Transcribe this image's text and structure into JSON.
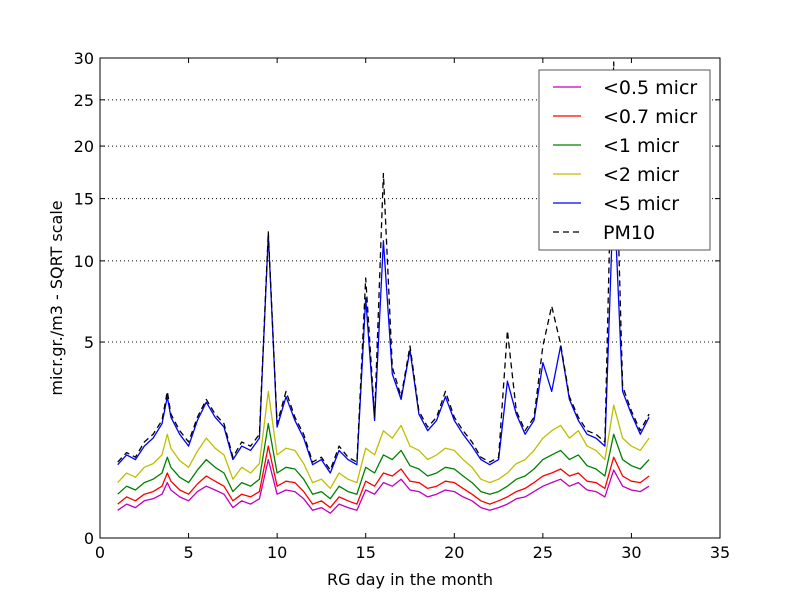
{
  "chart_data": {
    "type": "line",
    "title": "",
    "xlabel": "RG day in the month",
    "ylabel": "micr.gr./m3 - SQRT scale",
    "y_scale": "sqrt",
    "xlim": [
      0,
      35
    ],
    "ylim": [
      0,
      30
    ],
    "x_ticks": [
      0,
      5,
      10,
      15,
      20,
      25,
      30,
      35
    ],
    "x_tick_labels": [
      "0",
      "5",
      "10",
      "15",
      "20",
      "25",
      "30",
      "35"
    ],
    "y_ticks": [
      0,
      5,
      10,
      15,
      20,
      25,
      30
    ],
    "y_tick_labels": [
      "0",
      "5",
      "10",
      "15",
      "20",
      "25",
      "30"
    ],
    "grid": "horizontal dotted",
    "legend_position": "top-right",
    "x": [
      1,
      1.5,
      2,
      2.5,
      3,
      3.5,
      3.8,
      4,
      4.5,
      5,
      5.5,
      6,
      6.5,
      7,
      7.5,
      8,
      8.5,
      9,
      9.5,
      10,
      10.5,
      11,
      11.5,
      12,
      12.5,
      13,
      13.5,
      14,
      14.5,
      15,
      15.5,
      16,
      16.5,
      17,
      17.5,
      18,
      18.5,
      19,
      19.5,
      20,
      20.5,
      21,
      21.5,
      22,
      22.5,
      23,
      23.5,
      24,
      24.5,
      25,
      25.5,
      26,
      26.5,
      27,
      27.5,
      28,
      28.5,
      29,
      29.5,
      30,
      30.5,
      31
    ],
    "series": [
      {
        "name": "<0.5 micr",
        "color": "#bf00bf",
        "style": "solid",
        "values": [
          0.1,
          0.15,
          0.12,
          0.18,
          0.2,
          0.25,
          0.4,
          0.3,
          0.22,
          0.18,
          0.28,
          0.35,
          0.3,
          0.25,
          0.12,
          0.18,
          0.15,
          0.2,
          0.8,
          0.25,
          0.3,
          0.28,
          0.2,
          0.1,
          0.12,
          0.08,
          0.15,
          0.12,
          0.1,
          0.3,
          0.25,
          0.4,
          0.35,
          0.45,
          0.3,
          0.28,
          0.22,
          0.25,
          0.3,
          0.28,
          0.22,
          0.18,
          0.12,
          0.1,
          0.12,
          0.15,
          0.2,
          0.22,
          0.28,
          0.35,
          0.4,
          0.45,
          0.35,
          0.4,
          0.3,
          0.28,
          0.22,
          0.6,
          0.35,
          0.3,
          0.28,
          0.35
        ]
      },
      {
        "name": "<0.7 micr",
        "color": "#ff0000",
        "style": "solid",
        "values": [
          0.15,
          0.22,
          0.18,
          0.25,
          0.28,
          0.35,
          0.55,
          0.42,
          0.3,
          0.25,
          0.38,
          0.5,
          0.42,
          0.35,
          0.18,
          0.25,
          0.22,
          0.28,
          1.1,
          0.35,
          0.42,
          0.4,
          0.28,
          0.15,
          0.18,
          0.12,
          0.22,
          0.18,
          0.15,
          0.42,
          0.35,
          0.55,
          0.5,
          0.62,
          0.42,
          0.4,
          0.32,
          0.35,
          0.42,
          0.4,
          0.32,
          0.25,
          0.18,
          0.15,
          0.18,
          0.22,
          0.28,
          0.32,
          0.4,
          0.5,
          0.55,
          0.62,
          0.5,
          0.55,
          0.42,
          0.4,
          0.32,
          0.85,
          0.5,
          0.42,
          0.4,
          0.5
        ]
      },
      {
        "name": "<1 micr",
        "color": "#008000",
        "style": "solid",
        "values": [
          0.25,
          0.35,
          0.3,
          0.4,
          0.45,
          0.55,
          0.85,
          0.65,
          0.48,
          0.4,
          0.6,
          0.8,
          0.65,
          0.55,
          0.28,
          0.4,
          0.35,
          0.45,
          1.7,
          0.55,
          0.65,
          0.62,
          0.45,
          0.25,
          0.28,
          0.2,
          0.35,
          0.28,
          0.25,
          0.65,
          0.55,
          0.9,
          0.8,
          1.0,
          0.68,
          0.62,
          0.5,
          0.55,
          0.65,
          0.62,
          0.5,
          0.4,
          0.28,
          0.25,
          0.28,
          0.35,
          0.45,
          0.5,
          0.62,
          0.8,
          0.9,
          1.0,
          0.8,
          0.9,
          0.68,
          0.62,
          0.5,
          1.4,
          0.8,
          0.68,
          0.62,
          0.8
        ]
      },
      {
        "name": "<2 micr",
        "color": "#bfbf00",
        "style": "solid",
        "values": [
          0.4,
          0.55,
          0.48,
          0.65,
          0.72,
          0.9,
          1.4,
          1.05,
          0.78,
          0.65,
          0.98,
          1.3,
          1.05,
          0.9,
          0.45,
          0.65,
          0.55,
          0.72,
          2.8,
          0.9,
          1.05,
          1.0,
          0.72,
          0.4,
          0.45,
          0.32,
          0.55,
          0.45,
          0.4,
          1.05,
          0.9,
          1.5,
          1.3,
          1.65,
          1.1,
          1.0,
          0.8,
          0.9,
          1.05,
          1.0,
          0.8,
          0.65,
          0.45,
          0.4,
          0.45,
          0.55,
          0.72,
          0.8,
          1.0,
          1.3,
          1.5,
          1.65,
          1.3,
          1.5,
          1.1,
          1.0,
          0.8,
          2.3,
          1.3,
          1.1,
          1.0,
          1.3
        ]
      },
      {
        "name": "<5 micr",
        "color": "#0000ff",
        "style": "solid",
        "values": [
          0.7,
          0.9,
          0.8,
          1.1,
          1.3,
          1.7,
          2.6,
          1.9,
          1.4,
          1.1,
          1.8,
          2.4,
          1.9,
          1.6,
          0.8,
          1.1,
          1.0,
          1.3,
          12.0,
          1.6,
          2.6,
          1.8,
          1.3,
          0.7,
          0.8,
          0.55,
          1.0,
          0.8,
          0.7,
          7.5,
          1.8,
          11.5,
          3.5,
          2.5,
          4.6,
          2.0,
          1.5,
          1.8,
          2.6,
          1.8,
          1.4,
          1.1,
          0.8,
          0.7,
          0.8,
          3.2,
          2.0,
          1.4,
          1.8,
          4.0,
          2.8,
          4.8,
          2.5,
          1.8,
          1.4,
          1.3,
          1.1,
          16.0,
          2.8,
          2.0,
          1.4,
          1.9
        ]
      },
      {
        "name": "PM10",
        "color": "#000000",
        "style": "dashed",
        "values": [
          0.75,
          0.95,
          0.85,
          1.2,
          1.4,
          1.8,
          2.8,
          2.0,
          1.5,
          1.2,
          1.9,
          2.5,
          2.0,
          1.7,
          0.85,
          1.2,
          1.1,
          1.4,
          12.2,
          1.7,
          2.8,
          1.9,
          1.4,
          0.75,
          0.85,
          0.6,
          1.1,
          0.85,
          0.75,
          8.8,
          1.9,
          17.3,
          3.8,
          2.6,
          4.8,
          2.1,
          1.6,
          1.9,
          2.8,
          1.9,
          1.5,
          1.2,
          0.85,
          0.75,
          0.85,
          5.6,
          2.1,
          1.5,
          1.9,
          4.8,
          7.0,
          4.9,
          2.6,
          1.9,
          1.5,
          1.4,
          1.2,
          29.5,
          3.0,
          2.1,
          1.5,
          2.0
        ]
      }
    ]
  }
}
